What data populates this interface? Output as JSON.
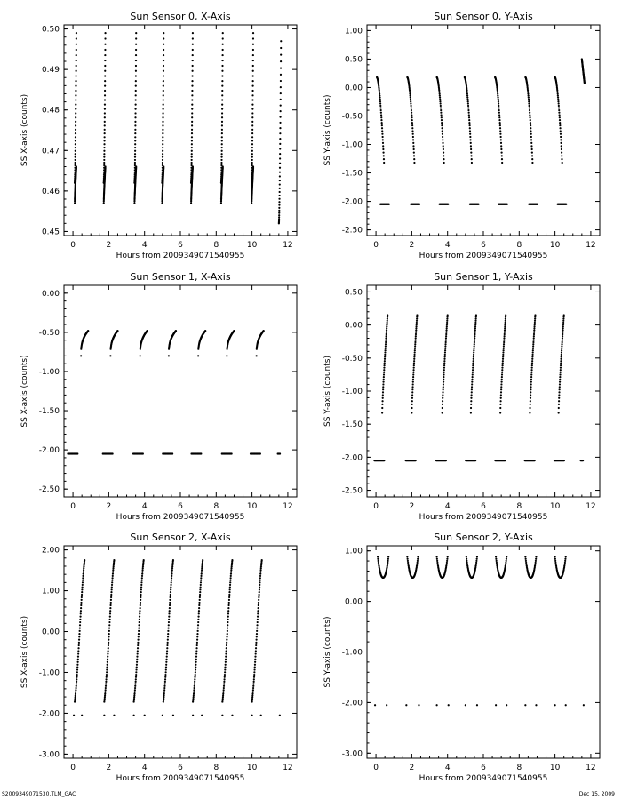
{
  "footer": {
    "left": "S2009349071530.TLM_GAC",
    "right": "Dec 15, 2009"
  },
  "chart_data": [
    {
      "type": "scatter",
      "title": "Sun Sensor 0, X-Axis",
      "xlabel": "Hours from 2009349071540955",
      "ylabel": "SS X-axis (counts)",
      "xlim": [
        -0.5,
        12.5
      ],
      "ylim": [
        0.449,
        0.501
      ],
      "xticks": [
        0,
        2,
        4,
        6,
        8,
        10,
        12
      ],
      "yticks": [
        0.45,
        0.46,
        0.47,
        0.48,
        0.49,
        0.5
      ],
      "ydecimals": 2,
      "series": [
        {
          "kind": "sweep",
          "starts": [
            0.1,
            1.72,
            3.44,
            4.98,
            6.6,
            8.28,
            9.98
          ],
          "width": 0.09,
          "y_start": 0.462,
          "y_end": 0.499,
          "shape": 1.6
        },
        {
          "kind": "sweep",
          "starts": [
            11.5
          ],
          "width": 0.12,
          "y_start": 0.452,
          "y_end": 0.497,
          "shape": 1.6
        },
        {
          "kind": "sweep",
          "starts": [
            0.1,
            1.72,
            3.44,
            4.98,
            6.6,
            8.28,
            9.98
          ],
          "width": 0.09,
          "y_start": 0.457,
          "y_end": 0.466,
          "shape": 0.8
        }
      ]
    },
    {
      "type": "scatter",
      "title": "Sun Sensor 0, Y-Axis",
      "xlabel": "Hours from 2009349071540955",
      "ylabel": "SS Y-axis (counts)",
      "xlim": [
        -0.5,
        12.5
      ],
      "ylim": [
        -2.6,
        1.1
      ],
      "xticks": [
        0,
        2,
        4,
        6,
        8,
        10,
        12
      ],
      "yticks": [
        1.0,
        0.5,
        0.0,
        -0.5,
        -1.0,
        -1.5,
        -2.0,
        -2.5
      ],
      "ydecimals": 2,
      "series": [
        {
          "kind": "sweep",
          "starts": [
            0.05,
            1.75,
            3.4,
            4.95,
            6.65,
            8.35,
            10.0
          ],
          "width": 0.4,
          "y_start": 0.18,
          "y_end": -1.32,
          "shape": 1.7
        },
        {
          "kind": "sweep",
          "starts": [
            11.5
          ],
          "width": 0.15,
          "y_start": 0.5,
          "y_end": 0.08,
          "shape": 1
        },
        {
          "kind": "dash",
          "centers": [
            0.5,
            2.2,
            3.8,
            5.5,
            7.1,
            8.8,
            10.4
          ],
          "half": 0.25,
          "y": -2.05
        }
      ]
    },
    {
      "type": "scatter",
      "title": "Sun Sensor 1, X-Axis",
      "xlabel": "Hours from 2009349071540955",
      "ylabel": "SS X-axis (counts)",
      "xlim": [
        -0.5,
        12.5
      ],
      "ylim": [
        -2.6,
        0.1
      ],
      "xticks": [
        0,
        2,
        4,
        6,
        8,
        10,
        12
      ],
      "yticks": [
        0.0,
        -0.5,
        -1.0,
        -1.5,
        -2.0,
        -2.5
      ],
      "ydecimals": 2,
      "series": [
        {
          "kind": "sweep",
          "starts": [
            0.45,
            2.1,
            3.75,
            5.35,
            7.0,
            8.6,
            10.25
          ],
          "width": 0.4,
          "y_start": -0.8,
          "y_end": -0.48,
          "shape": 0.35
        },
        {
          "kind": "dash",
          "centers": [
            0.0,
            1.95,
            3.65,
            5.3,
            6.9,
            8.6,
            10.2
          ],
          "half": 0.28,
          "y": -2.05
        },
        {
          "kind": "dash",
          "centers": [
            11.5
          ],
          "half": 0.06,
          "y": -2.05
        }
      ]
    },
    {
      "type": "scatter",
      "title": "Sun Sensor 1, Y-Axis",
      "xlabel": "Hours from 2009349071540955",
      "ylabel": "SS Y-axis (counts)",
      "xlim": [
        -0.5,
        12.5
      ],
      "ylim": [
        -2.6,
        0.6
      ],
      "xticks": [
        0,
        2,
        4,
        6,
        8,
        10,
        12
      ],
      "yticks": [
        0.5,
        0.0,
        -0.5,
        -1.0,
        -1.5,
        -2.0,
        -2.5
      ],
      "ydecimals": 2,
      "series": [
        {
          "kind": "sweep",
          "starts": [
            0.35,
            2.0,
            3.7,
            5.3,
            6.95,
            8.6,
            10.2
          ],
          "width": 0.3,
          "y_start": -1.33,
          "y_end": 0.15,
          "shape": 0.8
        },
        {
          "kind": "dash",
          "centers": [
            0.2,
            1.95,
            3.65,
            5.3,
            6.95,
            8.6,
            10.25
          ],
          "half": 0.28,
          "y": -2.05
        },
        {
          "kind": "dash",
          "centers": [
            11.5
          ],
          "half": 0.06,
          "y": -2.05
        }
      ]
    },
    {
      "type": "scatter",
      "title": "Sun Sensor 2, X-Axis",
      "xlabel": "Hours from 2009349071540955",
      "ylabel": "SS X-axis (counts)",
      "xlim": [
        -0.5,
        12.5
      ],
      "ylim": [
        -3.1,
        2.1
      ],
      "xticks": [
        0,
        2,
        4,
        6,
        8,
        10,
        12
      ],
      "yticks": [
        2.0,
        1.0,
        0.0,
        -1.0,
        -2.0,
        -3.0
      ],
      "ydecimals": 2,
      "series": [
        {
          "kind": "scurve",
          "starts": [
            0.1,
            1.75,
            3.4,
            5.05,
            6.7,
            8.35,
            10.0
          ],
          "width": 0.55,
          "y_start": -1.72,
          "y_end": 1.75
        },
        {
          "kind": "dots",
          "x": [
            0.05,
            0.5,
            1.75,
            2.3,
            3.4,
            4.0,
            5.0,
            5.6,
            6.7,
            7.2,
            8.35,
            8.9,
            10.0,
            10.5,
            11.55
          ],
          "y": -2.05
        }
      ]
    },
    {
      "type": "scatter",
      "title": "Sun Sensor 2, Y-Axis",
      "xlabel": "Hours from 2009349071540955",
      "ylabel": "SS Y-axis (counts)",
      "xlim": [
        -0.5,
        12.5
      ],
      "ylim": [
        -3.1,
        1.1
      ],
      "xticks": [
        0,
        2,
        4,
        6,
        8,
        10,
        12
      ],
      "yticks": [
        1.0,
        0.0,
        -1.0,
        -2.0,
        -3.0
      ],
      "ydecimals": 2,
      "series": [
        {
          "kind": "ushape",
          "starts": [
            0.1,
            1.75,
            3.4,
            5.05,
            6.7,
            8.35,
            10.0
          ],
          "width": 0.6,
          "y_top": 0.88,
          "y_bottom": 0.47
        },
        {
          "kind": "dots",
          "x": [
            -0.05,
            0.6,
            1.7,
            2.4,
            3.4,
            4.05,
            5.0,
            5.65,
            6.7,
            7.3,
            8.35,
            8.95,
            10.0,
            10.6,
            11.6
          ],
          "y": -2.05
        }
      ]
    }
  ]
}
